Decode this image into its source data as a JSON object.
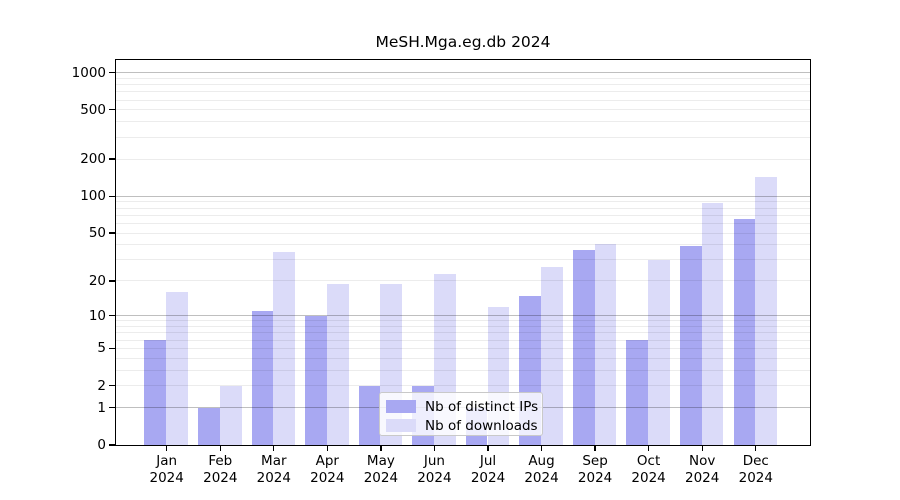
{
  "chart_data": {
    "type": "bar",
    "title": "MeSH.Mga.eg.db 2024",
    "x_month_labels": [
      "Jan",
      "Feb",
      "Mar",
      "Apr",
      "May",
      "Jun",
      "Jul",
      "Aug",
      "Sep",
      "Oct",
      "Nov",
      "Dec"
    ],
    "x_year_label": "2024",
    "series": [
      {
        "name": "Nb of distinct IPs",
        "color": "#a8a8f2",
        "values": [
          6,
          1,
          11,
          10,
          2,
          2,
          1,
          15,
          36,
          6,
          39,
          65
        ]
      },
      {
        "name": "Nb of downloads",
        "color": "#dbdbf9",
        "values": [
          16,
          2,
          35,
          19,
          19,
          23,
          12,
          26,
          41,
          30,
          88,
          143
        ]
      }
    ],
    "y_axis": {
      "scale": "log1p",
      "tick_values": [
        0,
        1,
        2,
        5,
        10,
        20,
        50,
        100,
        200,
        500,
        1000
      ],
      "major_grid_values": [
        1,
        10,
        100,
        1000
      ],
      "minor_grid_values": [
        2,
        3,
        4,
        5,
        6,
        7,
        8,
        9,
        20,
        30,
        40,
        50,
        60,
        70,
        80,
        90,
        200,
        300,
        400,
        500,
        600,
        700,
        800,
        900
      ],
      "ylim": [
        0,
        1250
      ]
    },
    "legend": {
      "position": "lower-center",
      "entries": [
        "Nb of distinct IPs",
        "Nb of downloads"
      ]
    },
    "grid": "on"
  }
}
